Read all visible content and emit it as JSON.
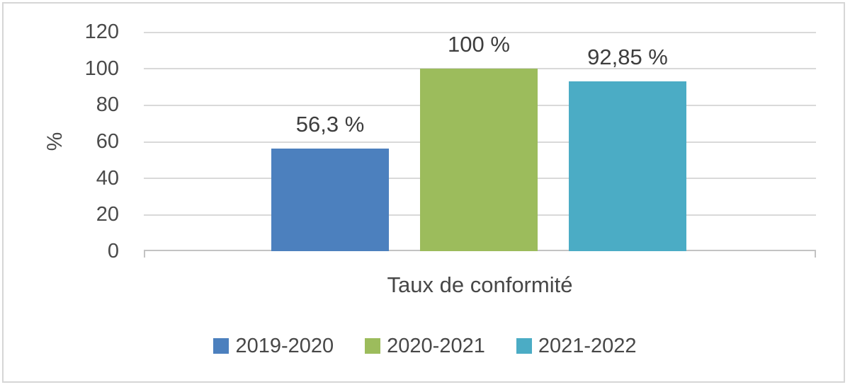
{
  "chart_data": {
    "type": "bar",
    "categories": [
      "Taux de conformité"
    ],
    "series": [
      {
        "name": "2019-2020",
        "values": [
          56.3
        ],
        "data_label": "56,3 %",
        "color": "#4C80BE"
      },
      {
        "name": "2020-2021",
        "values": [
          100
        ],
        "data_label": "100 %",
        "color": "#9CBC5C"
      },
      {
        "name": "2021-2022",
        "values": [
          92.85
        ],
        "data_label": "92,85 %",
        "color": "#4BACC5"
      }
    ],
    "title": "",
    "xlabel": "Taux de conformité",
    "ylabel": "%",
    "ylim": [
      0,
      120
    ],
    "yticks": [
      0,
      20,
      40,
      60,
      80,
      100,
      120
    ],
    "grid": true,
    "legend_position": "bottom"
  },
  "colors": {
    "gridline": "#D9D9D9",
    "axis_line": "#C3C3C3",
    "frame_border": "#D6D6D6",
    "text": "#474747"
  }
}
